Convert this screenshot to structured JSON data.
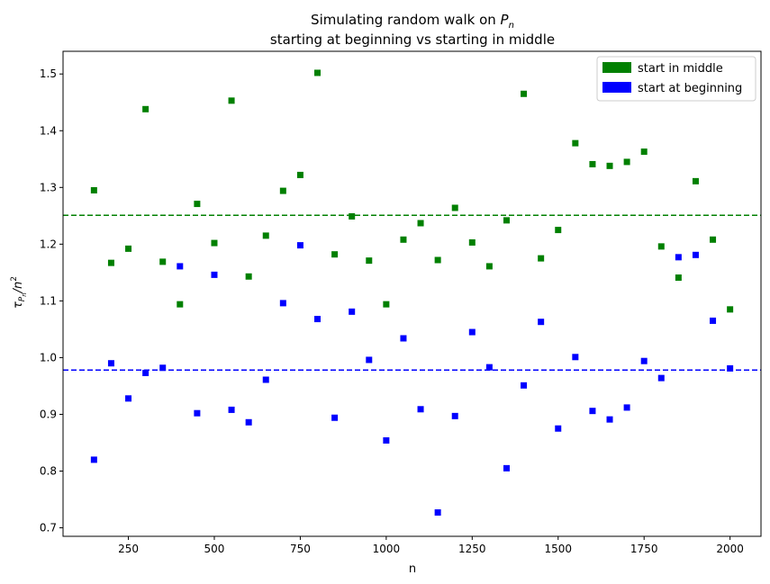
{
  "chart_data": {
    "type": "scatter",
    "title_line1": "Simulating random walk on ",
    "title_line1_symbol": "P",
    "title_line1_subscript": "n",
    "title_line2": "starting at beginning vs starting in middle",
    "xlabel": "n",
    "ylabel_symbol": "τ",
    "ylabel_sub_symbol": "P",
    "ylabel_sub_sub": "n",
    "ylabel_suffix": "/n",
    "ylabel_power": "2",
    "xlim": [
      60,
      2090
    ],
    "ylim": [
      0.685,
      1.54
    ],
    "xticks": [
      250,
      500,
      750,
      1000,
      1250,
      1500,
      1750,
      2000
    ],
    "yticks": [
      0.7,
      0.8,
      0.9,
      1.0,
      1.1,
      1.2,
      1.3,
      1.4,
      1.5
    ],
    "ytick_labels": [
      "0.7",
      "0.8",
      "0.9",
      "1.0",
      "1.1",
      "1.2",
      "1.3",
      "1.4",
      "1.5"
    ],
    "x": [
      150,
      200,
      250,
      300,
      350,
      400,
      450,
      500,
      550,
      600,
      650,
      700,
      750,
      800,
      850,
      900,
      950,
      1000,
      1050,
      1100,
      1150,
      1200,
      1250,
      1300,
      1350,
      1400,
      1450,
      1500,
      1550,
      1600,
      1650,
      1700,
      1750,
      1800,
      1850,
      1900,
      1950,
      2000
    ],
    "series": [
      {
        "name": "start in middle",
        "color": "#008000",
        "values": [
          1.295,
          1.167,
          1.192,
          1.438,
          1.169,
          1.094,
          1.271,
          1.202,
          1.453,
          1.143,
          1.215,
          1.294,
          1.322,
          1.502,
          1.182,
          1.249,
          1.171,
          1.094,
          1.208,
          1.237,
          1.172,
          1.264,
          1.203,
          1.161,
          1.242,
          1.465,
          1.175,
          1.225,
          1.378,
          1.341,
          1.338,
          1.345,
          1.363,
          1.196,
          1.141,
          1.311,
          1.208,
          1.085
        ],
        "mean": 1.251
      },
      {
        "name": "start at beginning",
        "color": "#0000ff",
        "values": [
          0.82,
          0.99,
          0.928,
          0.973,
          0.982,
          1.161,
          0.902,
          1.146,
          0.908,
          0.886,
          0.961,
          1.096,
          1.198,
          1.068,
          0.894,
          1.081,
          0.996,
          0.854,
          1.034,
          0.909,
          0.727,
          0.897,
          1.045,
          0.983,
          0.805,
          0.951,
          1.063,
          0.875,
          1.001,
          0.906,
          0.891,
          0.912,
          0.994,
          0.964,
          1.177,
          1.181,
          1.065,
          0.981
        ],
        "mean": 0.978
      }
    ],
    "legend": [
      "start in middle",
      "start at beginning"
    ],
    "legend_position": "top-right",
    "grid": false
  }
}
